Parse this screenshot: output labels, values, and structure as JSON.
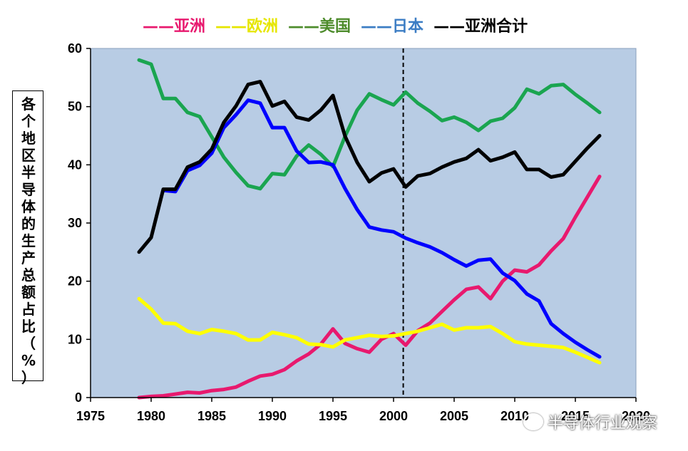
{
  "chart_data": {
    "type": "line",
    "ylabel": "各个地区半导体的生产总额占比（%）",
    "xlim": [
      1975,
      2020
    ],
    "ylim": [
      0,
      60
    ],
    "x_ticks": [
      "1975",
      "1980",
      "1985",
      "1990",
      "1995",
      "2000",
      "2005",
      "2010",
      "2015",
      "2020"
    ],
    "y_ticks": [
      "0",
      "10",
      "20",
      "30",
      "40",
      "50",
      "60"
    ],
    "grid": false,
    "legend_position": "top",
    "vline_x": 2000.8,
    "background_color": "#b8cce4",
    "series": [
      {
        "name": "亚洲",
        "legend_label": "——亚洲",
        "color": "#e8196e",
        "x": [
          1979,
          1980,
          1981,
          1982,
          1983,
          1984,
          1985,
          1986,
          1987,
          1988,
          1989,
          1990,
          1991,
          1992,
          1993,
          1994,
          1995,
          1996,
          1997,
          1998,
          1999,
          2000,
          2001,
          2002,
          2003,
          2004,
          2005,
          2006,
          2007,
          2008,
          2009,
          2010,
          2011,
          2012,
          2013,
          2014,
          2015,
          2016,
          2017
        ],
        "y": [
          0,
          0.2,
          0.3,
          0.6,
          0.9,
          0.8,
          1.2,
          1.4,
          1.8,
          2.8,
          3.7,
          4.0,
          4.8,
          6.3,
          7.5,
          9.2,
          11.8,
          9.3,
          8.4,
          7.8,
          10.0,
          11.0,
          9.0,
          11.5,
          12.8,
          14.8,
          16.8,
          18.6,
          19.0,
          17.0,
          20.0,
          21.9,
          21.6,
          22.8,
          25.2,
          27.3,
          31.0,
          34.5,
          38.0
        ]
      },
      {
        "name": "欧洲",
        "legend_label": "——欧洲",
        "color": "#ffff00",
        "x": [
          1979,
          1980,
          1981,
          1982,
          1983,
          1984,
          1985,
          1986,
          1987,
          1988,
          1989,
          1990,
          1991,
          1992,
          1993,
          1994,
          1995,
          1996,
          1997,
          1998,
          1999,
          2000,
          2001,
          2002,
          2003,
          2004,
          2005,
          2006,
          2007,
          2008,
          2009,
          2010,
          2011,
          2012,
          2013,
          2014,
          2015,
          2016,
          2017
        ],
        "y": [
          17,
          15.2,
          12.8,
          12.7,
          11.4,
          11.0,
          11.7,
          11.4,
          11.0,
          9.9,
          9.9,
          11.2,
          10.8,
          10.3,
          9.2,
          9.1,
          8.7,
          9.9,
          10.3,
          10.7,
          10.5,
          10.6,
          11.0,
          11.4,
          12.0,
          12.6,
          11.6,
          12.0,
          12.0,
          12.2,
          11.0,
          9.6,
          9.2,
          9.0,
          8.8,
          8.6,
          7.8,
          6.9,
          6.0
        ]
      },
      {
        "name": "美国",
        "legend_label": "——美国",
        "color": "#1aa550",
        "x": [
          1979,
          1980,
          1981,
          1982,
          1983,
          1984,
          1985,
          1986,
          1987,
          1988,
          1989,
          1990,
          1991,
          1992,
          1993,
          1994,
          1995,
          1996,
          1997,
          1998,
          1999,
          2000,
          2001,
          2002,
          2003,
          2004,
          2005,
          2006,
          2007,
          2008,
          2009,
          2010,
          2011,
          2012,
          2013,
          2014,
          2015,
          2016,
          2017
        ],
        "y": [
          58,
          57.3,
          51.4,
          51.4,
          49.0,
          48.3,
          44.8,
          41.3,
          38.7,
          36.4,
          35.9,
          38.5,
          38.3,
          41.5,
          43.4,
          41.8,
          39.7,
          44.9,
          49.4,
          52.2,
          51.2,
          50.3,
          52.5,
          50.6,
          49.2,
          47.6,
          48.2,
          47.3,
          45.9,
          47.5,
          48.0,
          49.8,
          53.0,
          52.2,
          53.6,
          53.8,
          52.1,
          50.6,
          49.0
        ]
      },
      {
        "name": "日本",
        "legend_label": "——日本",
        "color": "#0000ff",
        "x": [
          1981,
          1982,
          1983,
          1984,
          1985,
          1986,
          1987,
          1988,
          1989,
          1990,
          1991,
          1992,
          1993,
          1994,
          1995,
          1996,
          1997,
          1998,
          1999,
          2000,
          2001,
          2002,
          2003,
          2004,
          2005,
          2006,
          2007,
          2008,
          2009,
          2010,
          2011,
          2012,
          2013,
          2014,
          2015,
          2016,
          2017
        ],
        "y": [
          35.6,
          35.4,
          39.0,
          39.9,
          42.0,
          46.4,
          48.6,
          51.1,
          50.6,
          46.4,
          46.4,
          42.4,
          40.4,
          40.5,
          40.0,
          35.9,
          32.3,
          29.3,
          28.8,
          28.5,
          27.4,
          26.6,
          25.9,
          24.9,
          23.7,
          22.6,
          23.6,
          23.8,
          21.4,
          20.1,
          17.8,
          16.6,
          12.7,
          11.0,
          9.5,
          8.2,
          7.0
        ]
      },
      {
        "name": "亚洲合计",
        "legend_label": "——亚洲合计",
        "color": "#000000",
        "x": [
          1979,
          1980,
          1981,
          1982,
          1983,
          1984,
          1985,
          1986,
          1987,
          1988,
          1989,
          1990,
          1991,
          1992,
          1993,
          1994,
          1995,
          1996,
          1997,
          1998,
          1999,
          2000,
          2001,
          2002,
          2003,
          2004,
          2005,
          2006,
          2007,
          2008,
          2009,
          2010,
          2011,
          2012,
          2013,
          2014,
          2015,
          2016,
          2017
        ],
        "y": [
          25,
          27.5,
          35.8,
          35.8,
          39.6,
          40.5,
          42.7,
          47.3,
          50.1,
          53.8,
          54.3,
          50.1,
          50.9,
          48.2,
          47.7,
          49.4,
          51.9,
          44.9,
          40.4,
          37.1,
          38.6,
          39.3,
          36.2,
          38.1,
          38.5,
          39.6,
          40.5,
          41.1,
          42.6,
          40.7,
          41.3,
          42.2,
          39.2,
          39.2,
          37.9,
          38.3,
          40.6,
          42.9,
          45.0
        ]
      }
    ]
  },
  "watermark": {
    "icon": "wechat-icon",
    "text": "半导体行业观察"
  }
}
